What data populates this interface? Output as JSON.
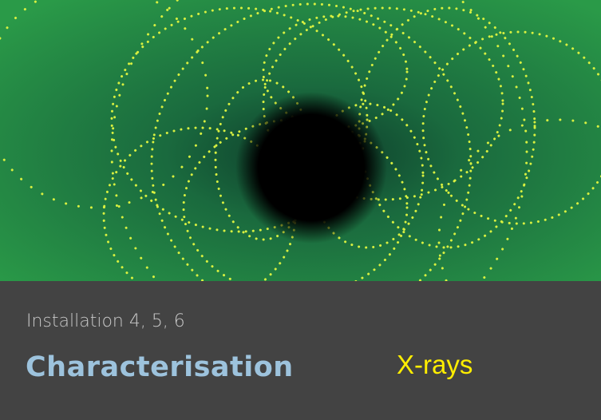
{
  "card": {
    "subtitle": "Installation 4, 5, 6",
    "title": "Characterisation",
    "tag": "X-rays"
  }
}
